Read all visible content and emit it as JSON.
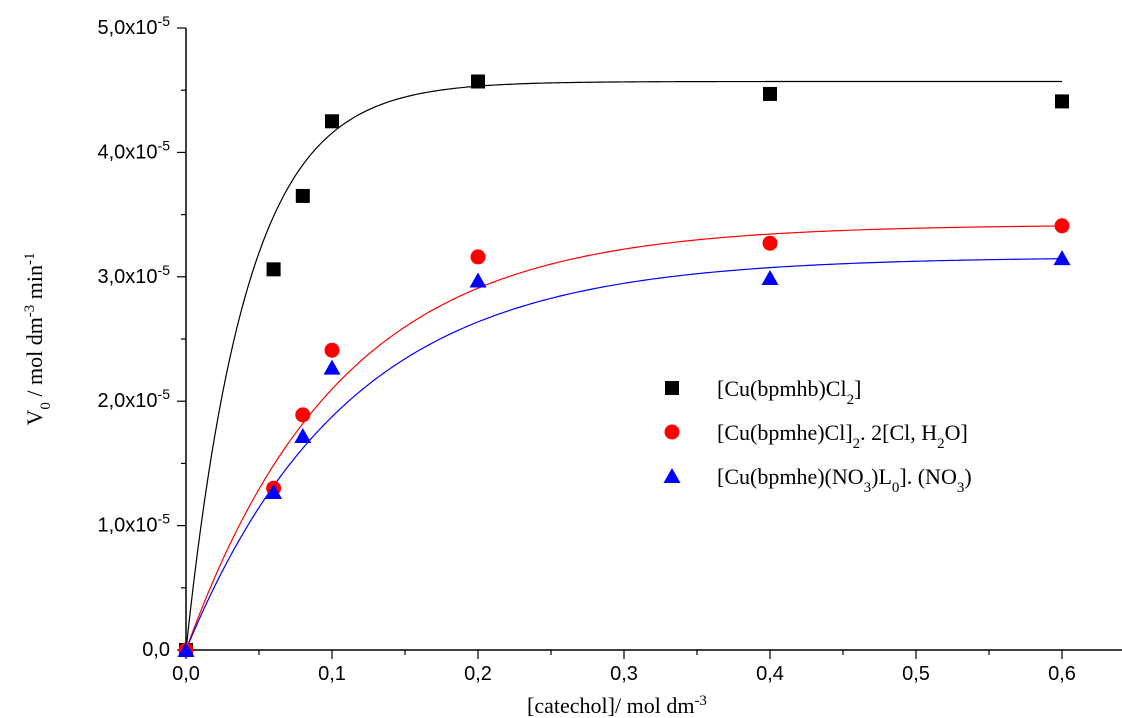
{
  "chart_data": {
    "type": "scatter",
    "xlabel": {
      "main": "[catechol]/ mol dm",
      "sup": "-3"
    },
    "ylabel": {
      "v": "V",
      "sub0": "0",
      "mid": " / mol dm",
      "sup1": "-3",
      "mid2": " min",
      "sup2": "-1"
    },
    "xlim": [
      0,
      0.64
    ],
    "ylim": [
      0,
      5e-05
    ],
    "xticks": [
      0,
      0.1,
      0.2,
      0.3,
      0.4,
      0.5,
      0.6
    ],
    "xtick_labels": [
      "0,0",
      "0,1",
      "0,2",
      "0,3",
      "0,4",
      "0,5",
      "0,6"
    ],
    "yticks": [
      0,
      1e-05,
      2e-05,
      3e-05,
      4e-05,
      5e-05
    ],
    "ytick_labels": [
      {
        "base": "0,0",
        "exp": ""
      },
      {
        "base": "1,0x10",
        "exp": "-5"
      },
      {
        "base": "2,0x10",
        "exp": "-5"
      },
      {
        "base": "3,0x10",
        "exp": "-5"
      },
      {
        "base": "4,0x10",
        "exp": "-5"
      },
      {
        "base": "5,0x10",
        "exp": "-5"
      }
    ],
    "grid": false,
    "legend_position": "center-right",
    "series": [
      {
        "name": "[Cu(bpmhb)Cl2]",
        "legend_parts": [
          [
            "[Cu(bpmhb)Cl",
            "n"
          ],
          [
            "2",
            "sub"
          ],
          [
            "]",
            "n"
          ]
        ],
        "marker": "square",
        "color": "#000000",
        "x": [
          0,
          0.06,
          0.08,
          0.1,
          0.2,
          0.4,
          0.6
        ],
        "y": [
          0,
          3.06e-05,
          3.65e-05,
          4.25e-05,
          4.57e-05,
          4.47e-05,
          4.41e-05
        ],
        "fit": {
          "vmax": 4.57e-05,
          "k": 24.0
        }
      },
      {
        "name": "[Cu(bpmhe)Cl]2. 2[Cl, H2O]",
        "legend_parts": [
          [
            "[Cu(bpmhe)Cl]",
            "n"
          ],
          [
            "2",
            "sub"
          ],
          [
            ". 2[Cl, H",
            "n"
          ],
          [
            "2",
            "sub"
          ],
          [
            "O]",
            "n"
          ]
        ],
        "marker": "circle",
        "color": "#ff0000",
        "x": [
          0,
          0.06,
          0.08,
          0.1,
          0.2,
          0.4,
          0.6
        ],
        "y": [
          0,
          1.3e-05,
          1.89e-05,
          2.41e-05,
          3.16e-05,
          3.27e-05,
          3.41e-05
        ],
        "fit": {
          "vmax": 3.42e-05,
          "k": 9.5
        }
      },
      {
        "name": "[Cu(bpmhe)(NO3)L0]. (NO3)",
        "legend_parts": [
          [
            "[Cu(bpmhe)(NO",
            "n"
          ],
          [
            "3",
            "sub"
          ],
          [
            ")L",
            "n"
          ],
          [
            "0",
            "sub"
          ],
          [
            "]. (NO",
            "n"
          ],
          [
            "3",
            "sub"
          ],
          [
            ")",
            "n"
          ]
        ],
        "marker": "triangle",
        "color": "#0000ff",
        "x": [
          0,
          0.06,
          0.08,
          0.1,
          0.2,
          0.4,
          0.6
        ],
        "y": [
          0,
          1.27e-05,
          1.72e-05,
          2.27e-05,
          2.97e-05,
          2.99e-05,
          3.15e-05
        ],
        "fit": {
          "vmax": 3.16e-05,
          "k": 9.0
        }
      }
    ]
  }
}
